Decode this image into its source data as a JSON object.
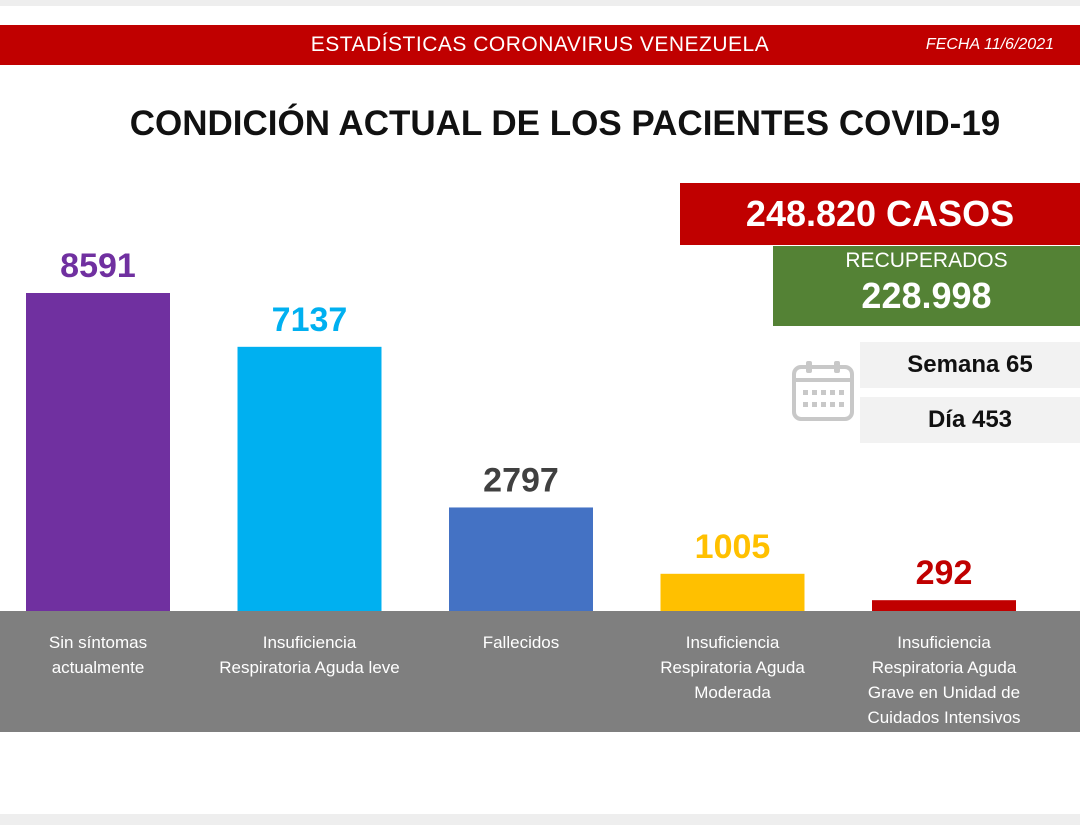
{
  "header": {
    "banner_title": "ESTADÍSTICAS CORONAVIRUS VENEZUELA",
    "date": "FECHA 11/6/2021",
    "title": "CONDICIÓN ACTUAL DE LOS PACIENTES COVID-19"
  },
  "summary": {
    "total_cases": "248.820 CASOS",
    "recovered_label": "RECUPERADOS",
    "recovered_value": "228.998",
    "week": "Semana 65",
    "day": "Día 453",
    "icon": "calendar-icon"
  },
  "chart_data": {
    "type": "bar",
    "categories": [
      "Sin síntomas\nactualmente",
      "Insuficiencia\nRespiratoria Aguda leve",
      "Fallecidos",
      "Insuficiencia\nRespiratoria Aguda\nModerada",
      "Insuficiencia\nRespiratoria Aguda\nGrave en Unidad de\nCuidados Intensivos"
    ],
    "values": [
      8591,
      7137,
      2797,
      1005,
      292
    ],
    "colors": [
      "#7030a0",
      "#00b0f0",
      "#4472c4",
      "#ffc000",
      "#c00000"
    ],
    "label_colors": [
      "#7030a0",
      "#00b0f0",
      "#404040",
      "#ffc000",
      "#c00000"
    ],
    "ylim": [
      0,
      8591
    ],
    "grid": false,
    "legend": "none"
  }
}
